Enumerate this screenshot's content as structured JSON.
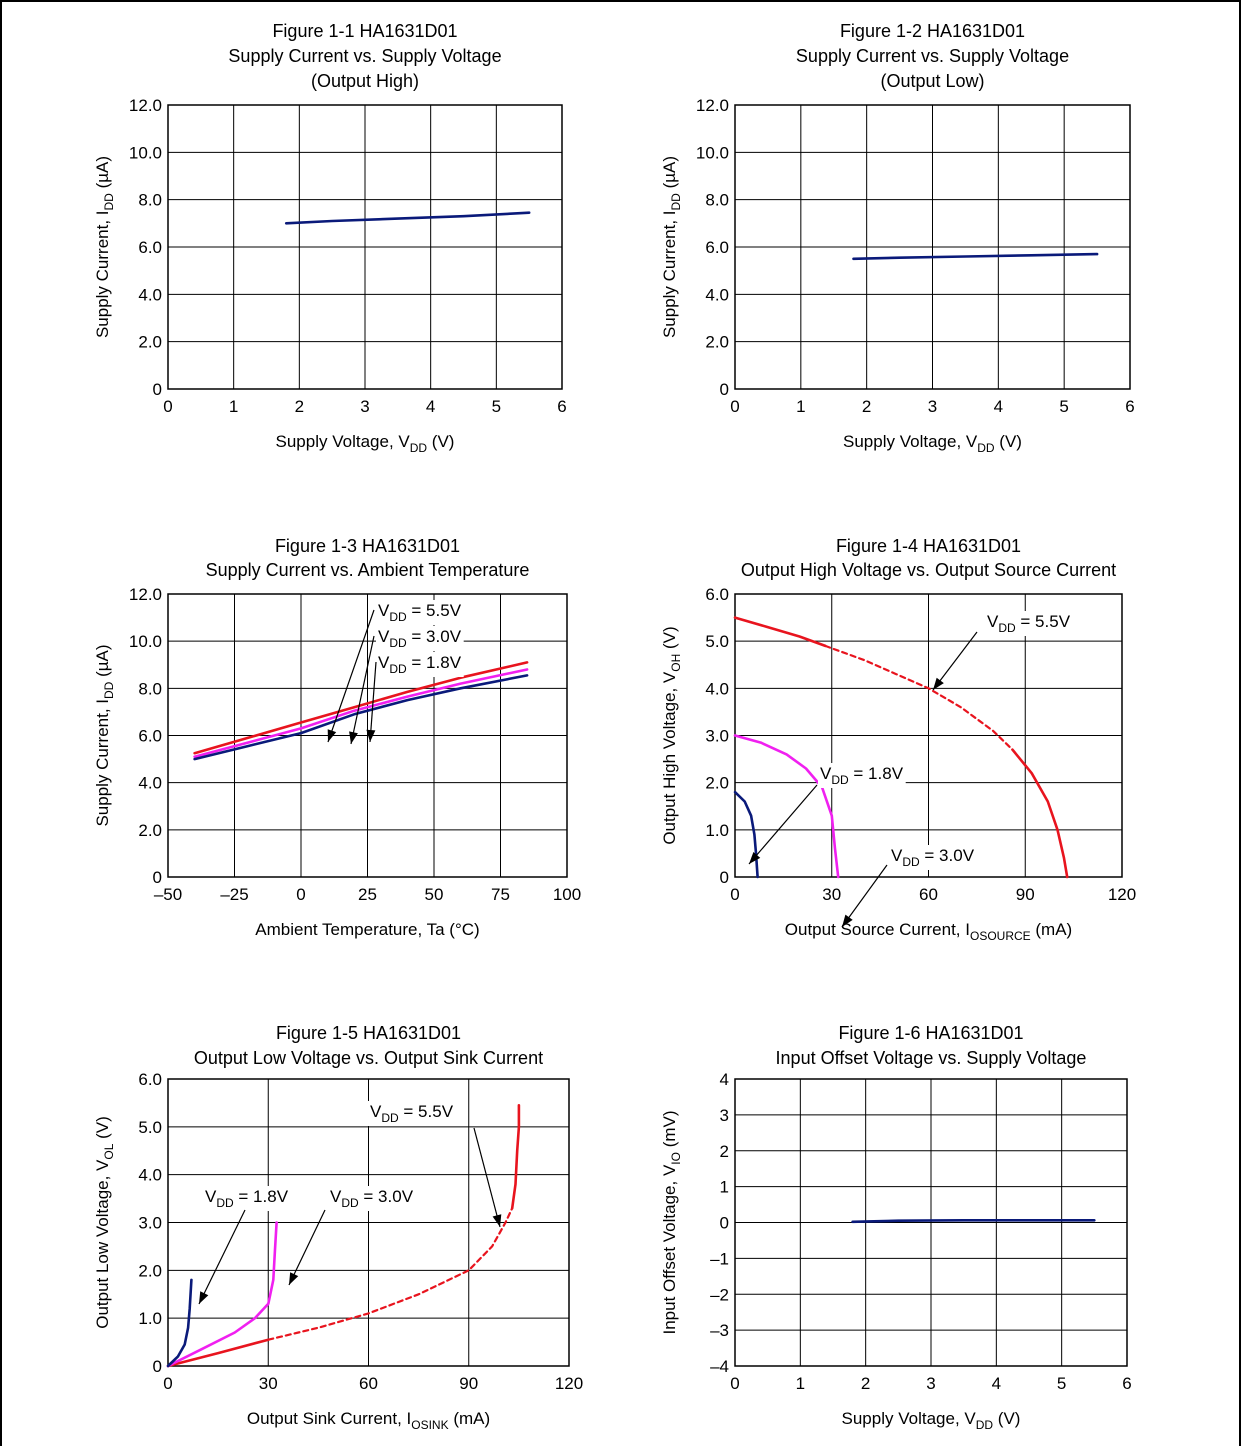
{
  "colors": {
    "navy": "#0a1a7a",
    "red": "#e8141e",
    "magenta": "#f020f0",
    "grid": "#000000"
  },
  "chart_data": [
    {
      "type": "line",
      "title_lines": [
        "Figure 1-1 HA1631D01",
        "Supply Current vs. Supply Voltage",
        "(Output High)"
      ],
      "xlabel": {
        "main": "Supply Voltage,   V",
        "sub": "DD",
        "unit": "   (V)"
      },
      "ylabel": {
        "main": "Supply Current,   I",
        "sub": "DD",
        "unit": "   (µA)"
      },
      "xlim": [
        0,
        6
      ],
      "ylim": [
        0,
        12
      ],
      "x_ticks": [
        0,
        1,
        2,
        3,
        4,
        5,
        6
      ],
      "x_tick_labels": [
        "0",
        "1",
        "2",
        "3",
        "4",
        "5",
        "6"
      ],
      "y_ticks": [
        0,
        2,
        4,
        6,
        8,
        10,
        12
      ],
      "y_tick_labels": [
        "0",
        "2.0",
        "4.0",
        "6.0",
        "8.0",
        "10.0",
        "12.0"
      ],
      "grid": true,
      "series": [
        {
          "color": "#0a1a7a",
          "x": [
            1.8,
            2.5,
            3.5,
            4.5,
            5.5
          ],
          "y": [
            7.0,
            7.1,
            7.2,
            7.3,
            7.45
          ]
        }
      ],
      "annotations": []
    },
    {
      "type": "line",
      "title_lines": [
        "Figure 1-2 HA1631D01",
        "Supply Current vs. Supply Voltage",
        "(Output Low)"
      ],
      "xlabel": {
        "main": "Supply Voltage,   V",
        "sub": "DD",
        "unit": "   (V)"
      },
      "ylabel": {
        "main": "Supply Current,   I",
        "sub": "DD",
        "unit": "   (µA)"
      },
      "xlim": [
        0,
        6
      ],
      "ylim": [
        0,
        12
      ],
      "x_ticks": [
        0,
        1,
        2,
        3,
        4,
        5,
        6
      ],
      "x_tick_labels": [
        "0",
        "1",
        "2",
        "3",
        "4",
        "5",
        "6"
      ],
      "y_ticks": [
        0,
        2,
        4,
        6,
        8,
        10,
        12
      ],
      "y_tick_labels": [
        "0",
        "2.0",
        "4.0",
        "6.0",
        "8.0",
        "10.0",
        "12.0"
      ],
      "grid": true,
      "series": [
        {
          "color": "#0a1a7a",
          "x": [
            1.8,
            2.5,
            3.5,
            4.5,
            5.5
          ],
          "y": [
            5.5,
            5.55,
            5.6,
            5.65,
            5.7
          ]
        }
      ],
      "annotations": []
    },
    {
      "type": "line",
      "title_lines": [
        "Figure 1-3 HA1631D01",
        "Supply Current vs. Ambient Temperature"
      ],
      "xlabel": {
        "main": "Ambient Temperature,   Ta   (°C)",
        "sub": "",
        "unit": ""
      },
      "ylabel": {
        "main": "Supply Current,   I",
        "sub": "DD",
        "unit": "   (µA)"
      },
      "xlim": [
        -50,
        100
      ],
      "ylim": [
        0,
        12
      ],
      "x_ticks": [
        -50,
        -25,
        0,
        25,
        50,
        75,
        100
      ],
      "x_tick_labels": [
        "–50",
        "–25",
        "0",
        "25",
        "50",
        "75",
        "100"
      ],
      "y_ticks": [
        0,
        2,
        4,
        6,
        8,
        10,
        12
      ],
      "y_tick_labels": [
        "0",
        "2.0",
        "4.0",
        "6.0",
        "8.0",
        "10.0",
        "12.0"
      ],
      "grid": true,
      "series": [
        {
          "color": "#e8141e",
          "x": [
            -40,
            -20,
            0,
            20,
            40,
            60,
            85
          ],
          "y": [
            5.25,
            5.9,
            6.55,
            7.2,
            7.85,
            8.45,
            9.1
          ]
        },
        {
          "color": "#f020f0",
          "x": [
            -40,
            -20,
            0,
            20,
            40,
            60,
            85
          ],
          "y": [
            5.1,
            5.7,
            6.3,
            7.05,
            7.65,
            8.2,
            8.8
          ]
        },
        {
          "color": "#0a1a7a",
          "x": [
            -40,
            -20,
            0,
            20,
            40,
            60,
            85
          ],
          "y": [
            5.0,
            5.55,
            6.1,
            6.9,
            7.5,
            8.0,
            8.55
          ]
        }
      ],
      "annotations": [
        {
          "lines": [
            {
              "main": "V",
              "sub": "DD",
              "rest": " = 5.5V"
            },
            {
              "main": "V",
              "sub": "DD",
              "rest": " = 3.0V"
            },
            {
              "main": "V",
              "sub": "DD",
              "rest": " = 1.8V"
            }
          ]
        }
      ]
    },
    {
      "type": "line",
      "title_lines": [
        "Figure 1-4 HA1631D01",
        "Output High Voltage vs. Output Source Current"
      ],
      "xlabel": {
        "main": "Output Source Current,   I",
        "sub": "OSOURCE",
        "unit": "   (mA)"
      },
      "ylabel": {
        "main": "Output High Voltage,   V",
        "sub": "OH",
        "unit": "   (V)"
      },
      "xlim": [
        0,
        120
      ],
      "ylim": [
        0,
        6
      ],
      "x_ticks": [
        0,
        30,
        60,
        90,
        120
      ],
      "x_tick_labels": [
        "0",
        "30",
        "60",
        "90",
        "120"
      ],
      "y_ticks": [
        0,
        1,
        2,
        3,
        4,
        5,
        6
      ],
      "y_tick_labels": [
        "0",
        "1.0",
        "2.0",
        "3.0",
        "4.0",
        "5.0",
        "6.0"
      ],
      "grid": true,
      "series": [
        {
          "color": "#e8141e",
          "x": [
            0,
            10,
            20,
            28
          ],
          "y": [
            5.5,
            5.3,
            5.1,
            4.9
          ]
        },
        {
          "color": "#e8141e",
          "dashed": true,
          "x": [
            28,
            40,
            50,
            60,
            70,
            80,
            86
          ],
          "y": [
            4.9,
            4.6,
            4.3,
            4.0,
            3.6,
            3.1,
            2.7
          ]
        },
        {
          "color": "#e8141e",
          "x": [
            86,
            92,
            97,
            100,
            102,
            103
          ],
          "y": [
            2.7,
            2.2,
            1.6,
            1.0,
            0.4,
            0
          ]
        },
        {
          "color": "#f020f0",
          "x": [
            0,
            8,
            16,
            22,
            27,
            30,
            31,
            32
          ],
          "y": [
            3.0,
            2.85,
            2.6,
            2.3,
            1.9,
            1.3,
            0.6,
            0
          ]
        },
        {
          "color": "#0a1a7a",
          "x": [
            0,
            3,
            5,
            6,
            6.5,
            7
          ],
          "y": [
            1.8,
            1.6,
            1.3,
            0.9,
            0.5,
            0
          ]
        }
      ],
      "annotations": [
        {
          "lines": [
            {
              "main": "V",
              "sub": "DD",
              "rest": " = 5.5V"
            }
          ]
        },
        {
          "lines": [
            {
              "main": "V",
              "sub": "DD",
              "rest": " = 1.8V"
            }
          ]
        },
        {
          "lines": [
            {
              "main": "V",
              "sub": "DD",
              "rest": " = 3.0V"
            }
          ]
        }
      ]
    },
    {
      "type": "line",
      "title_lines": [
        "Figure 1-5 HA1631D01",
        "Output Low Voltage vs. Output Sink Current"
      ],
      "xlabel": {
        "main": "Output Sink Current,   I",
        "sub": "OSINK",
        "unit": "   (mA)"
      },
      "ylabel": {
        "main": "Output Low Voltage,   V",
        "sub": "OL",
        "unit": "   (V)"
      },
      "xlim": [
        0,
        120
      ],
      "ylim": [
        0,
        6
      ],
      "x_ticks": [
        0,
        30,
        60,
        90,
        120
      ],
      "x_tick_labels": [
        "0",
        "30",
        "60",
        "90",
        "120"
      ],
      "y_ticks": [
        0,
        1,
        2,
        3,
        4,
        5,
        6
      ],
      "y_tick_labels": [
        "0",
        "1.0",
        "2.0",
        "3.0",
        "4.0",
        "5.0",
        "6.0"
      ],
      "grid": true,
      "series": [
        {
          "color": "#e8141e",
          "x": [
            0,
            15,
            30
          ],
          "y": [
            0,
            0.27,
            0.55
          ]
        },
        {
          "color": "#e8141e",
          "dashed": true,
          "x": [
            30,
            45,
            60,
            75,
            90,
            97,
            101,
            103
          ],
          "y": [
            0.55,
            0.8,
            1.1,
            1.5,
            2.0,
            2.5,
            3.0,
            3.3
          ]
        },
        {
          "color": "#e8141e",
          "x": [
            103,
            104,
            104.5,
            105,
            105
          ],
          "y": [
            3.3,
            3.8,
            4.5,
            5.0,
            5.45
          ]
        },
        {
          "color": "#f020f0",
          "x": [
            0,
            10,
            20,
            26,
            30,
            31.5,
            32,
            32.5
          ],
          "y": [
            0,
            0.35,
            0.7,
            1.0,
            1.3,
            1.8,
            2.4,
            3.0
          ]
        },
        {
          "color": "#0a1a7a",
          "x": [
            0,
            3,
            5,
            6,
            6.5,
            7
          ],
          "y": [
            0,
            0.2,
            0.45,
            0.8,
            1.2,
            1.8
          ]
        }
      ],
      "annotations": [
        {
          "lines": [
            {
              "main": "V",
              "sub": "DD",
              "rest": " = 5.5V"
            }
          ]
        },
        {
          "lines": [
            {
              "main": "V",
              "sub": "DD",
              "rest": " = 1.8V"
            }
          ]
        },
        {
          "lines": [
            {
              "main": "V",
              "sub": "DD",
              "rest": " = 3.0V"
            }
          ]
        }
      ]
    },
    {
      "type": "line",
      "title_lines": [
        "Figure 1-6 HA1631D01",
        "Input Offset Voltage vs. Supply Voltage"
      ],
      "xlabel": {
        "main": "Supply Voltage,   V",
        "sub": "DD",
        "unit": "   (V)"
      },
      "ylabel": {
        "main": "Input Offset Voltage,   V",
        "sub": "IO",
        "unit": "   (mV)"
      },
      "xlim": [
        0,
        6
      ],
      "ylim": [
        -4,
        4
      ],
      "x_ticks": [
        0,
        1,
        2,
        3,
        4,
        5,
        6
      ],
      "x_tick_labels": [
        "0",
        "1",
        "2",
        "3",
        "4",
        "5",
        "6"
      ],
      "y_ticks": [
        -4,
        -3,
        -2,
        -1,
        0,
        1,
        2,
        3,
        4
      ],
      "y_tick_labels": [
        "–4",
        "–3",
        "–2",
        "–1",
        "0",
        "1",
        "2",
        "3",
        "4"
      ],
      "grid": true,
      "series": [
        {
          "color": "#0a1a7a",
          "x": [
            1.8,
            2.5,
            3.5,
            4.5,
            5.5
          ],
          "y": [
            0.02,
            0.05,
            0.06,
            0.06,
            0.06
          ]
        }
      ],
      "annotations": []
    }
  ]
}
